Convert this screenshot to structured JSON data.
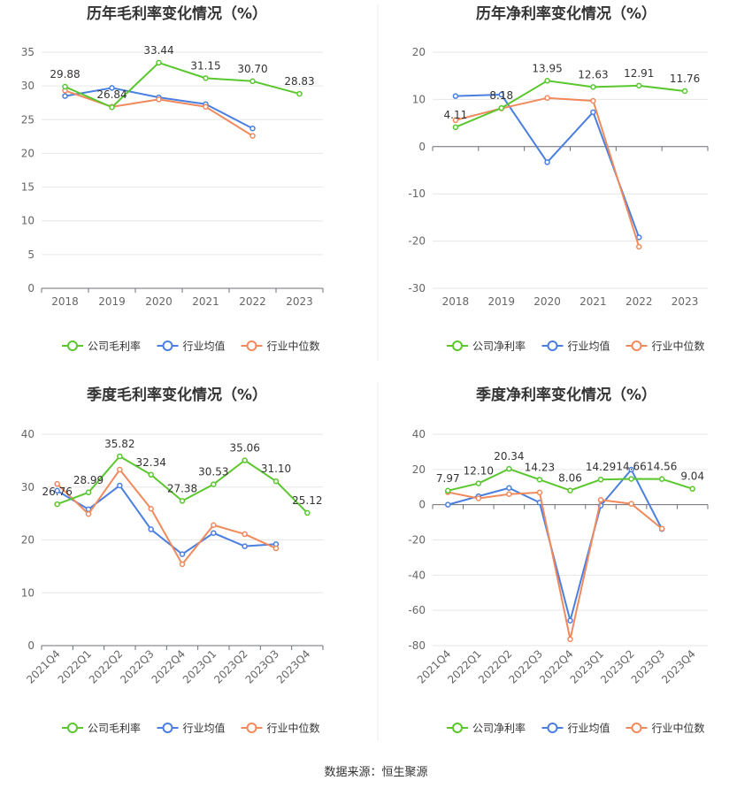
{
  "source": "数据来源：恒生聚源",
  "chart_data": [
    {
      "type": "line",
      "title": "历年毛利率变化情况（%）",
      "categories": [
        "2018",
        "2019",
        "2020",
        "2021",
        "2022",
        "2023"
      ],
      "ylim": [
        0,
        35
      ],
      "yticks": [
        0,
        5,
        10,
        15,
        20,
        25,
        30,
        35
      ],
      "grid": true,
      "legend_position": "bottom",
      "series": [
        {
          "name": "公司毛利率",
          "color": "#5ac72f",
          "values": [
            29.88,
            26.84,
            33.44,
            31.15,
            30.7,
            28.83
          ],
          "labels": true
        },
        {
          "name": "行业均值",
          "color": "#4a7fe0",
          "values": [
            28.5,
            29.7,
            28.3,
            27.3,
            23.7,
            null
          ],
          "labels": false
        },
        {
          "name": "行业中位数",
          "color": "#f08a5d",
          "values": [
            29.3,
            26.9,
            28.0,
            26.9,
            22.6,
            null
          ],
          "labels": false
        }
      ]
    },
    {
      "type": "line",
      "title": "历年净利率变化情况（%）",
      "categories": [
        "2018",
        "2019",
        "2020",
        "2021",
        "2022",
        "2023"
      ],
      "ylim": [
        -30,
        20
      ],
      "yticks": [
        -30,
        -20,
        -10,
        0,
        10,
        20
      ],
      "grid": true,
      "legend_position": "bottom",
      "series": [
        {
          "name": "公司净利率",
          "color": "#5ac72f",
          "values": [
            4.11,
            8.18,
            13.95,
            12.63,
            12.91,
            11.76
          ],
          "labels": true
        },
        {
          "name": "行业均值",
          "color": "#4a7fe0",
          "values": [
            10.7,
            11.0,
            -3.3,
            7.3,
            -19.2,
            null
          ],
          "labels": false
        },
        {
          "name": "行业中位数",
          "color": "#f08a5d",
          "values": [
            5.6,
            8.1,
            10.3,
            9.7,
            -21.2,
            null
          ],
          "labels": false
        }
      ]
    },
    {
      "type": "line",
      "title": "季度毛利率变化情况（%）",
      "categories": [
        "2021Q4",
        "2022Q1",
        "2022Q2",
        "2022Q3",
        "2022Q4",
        "2023Q1",
        "2023Q2",
        "2023Q3",
        "2023Q4"
      ],
      "ylim": [
        0,
        40
      ],
      "yticks": [
        0,
        10,
        20,
        30,
        40
      ],
      "grid": true,
      "legend_position": "bottom",
      "series": [
        {
          "name": "公司毛利率",
          "color": "#5ac72f",
          "values": [
            26.76,
            28.99,
            35.82,
            32.34,
            27.38,
            30.53,
            35.06,
            31.1,
            25.12
          ],
          "labels": true
        },
        {
          "name": "行业均值",
          "color": "#4a7fe0",
          "values": [
            29.3,
            25.8,
            30.3,
            22.0,
            17.3,
            21.3,
            18.8,
            19.2,
            null
          ],
          "labels": false
        },
        {
          "name": "行业中位数",
          "color": "#f08a5d",
          "values": [
            30.6,
            24.9,
            33.3,
            25.9,
            15.4,
            22.8,
            21.1,
            18.4,
            null
          ],
          "labels": false
        }
      ]
    },
    {
      "type": "line",
      "title": "季度净利率变化情况（%）",
      "categories": [
        "2021Q4",
        "2022Q1",
        "2022Q2",
        "2022Q3",
        "2022Q4",
        "2023Q1",
        "2023Q2",
        "2023Q3",
        "2023Q4"
      ],
      "ylim": [
        -80,
        40
      ],
      "yticks": [
        -80,
        -60,
        -40,
        -20,
        0,
        20,
        40
      ],
      "grid": true,
      "legend_position": "bottom",
      "series": [
        {
          "name": "公司净利率",
          "color": "#5ac72f",
          "values": [
            7.97,
            12.1,
            20.34,
            14.23,
            8.06,
            14.29,
            14.66,
            14.56,
            9.04
          ],
          "labels": true
        },
        {
          "name": "行业均值",
          "color": "#4a7fe0",
          "values": [
            0.0,
            4.8,
            9.5,
            1.2,
            -65.8,
            -0.5,
            19.9,
            -13.8,
            null
          ],
          "labels": false
        },
        {
          "name": "行业中位数",
          "color": "#f08a5d",
          "values": [
            7.1,
            3.6,
            6.0,
            6.9,
            -76.4,
            2.7,
            0.5,
            -13.6,
            null
          ],
          "labels": false
        }
      ]
    }
  ]
}
